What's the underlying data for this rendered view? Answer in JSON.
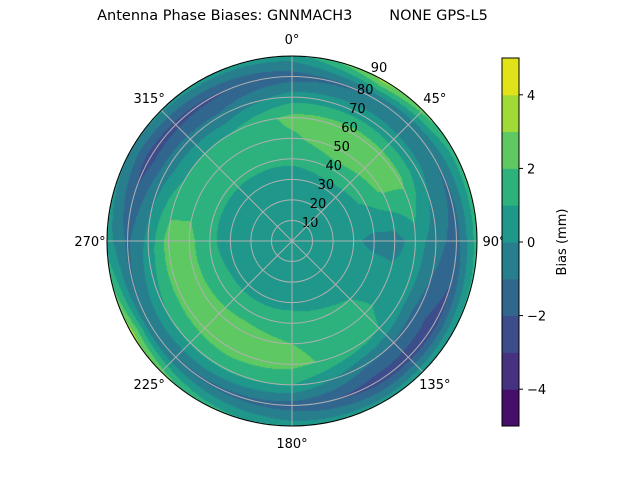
{
  "chart_data": {
    "type": "polar-contour",
    "title": "Antenna Phase Biases: GNNMACH3        NONE GPS-L5",
    "angular_direction": "clockwise",
    "angular_zero": "top",
    "angular_ticks": [
      "0°",
      "45°",
      "90°",
      "135°",
      "180°",
      "225°",
      "270°",
      "315°"
    ],
    "radial_ticks": [
      "10",
      "20",
      "30",
      "40",
      "50",
      "60",
      "70",
      "80",
      "90"
    ],
    "radial_range": [
      0,
      90
    ],
    "grid": true,
    "azimuths": [
      0,
      30,
      60,
      90,
      120,
      150,
      180,
      210,
      240,
      270,
      300,
      330
    ],
    "zeniths": [
      0,
      10,
      20,
      30,
      40,
      50,
      60,
      70,
      80,
      90
    ],
    "values": [
      [
        0.5,
        0.5,
        0.5,
        0.5,
        0.5,
        0.5,
        0.5,
        0.5,
        0.5,
        0.5,
        0.5,
        0.5
      ],
      [
        0.5,
        0.5,
        0.5,
        0.5,
        0.5,
        0.5,
        0.5,
        0.5,
        0.5,
        0.5,
        0.5,
        0.5
      ],
      [
        0.5,
        0.5,
        0.5,
        0.4,
        0.5,
        0.5,
        0.5,
        0.5,
        0.5,
        0.5,
        0.5,
        0.5
      ],
      [
        0.6,
        0.7,
        0.6,
        0.2,
        0.5,
        0.6,
        0.7,
        0.7,
        0.7,
        0.6,
        0.6,
        0.6
      ],
      [
        1.2,
        1.5,
        1.2,
        -0.3,
        0.8,
        1.2,
        1.5,
        1.5,
        1.5,
        1.2,
        1.2,
        1.2
      ],
      [
        1.8,
        2.8,
        2.2,
        -0.5,
        0.8,
        1.5,
        2.0,
        2.5,
        2.3,
        2.3,
        1.5,
        1.5
      ],
      [
        2.3,
        2.5,
        2.3,
        0.5,
        0.5,
        1.5,
        2.3,
        2.5,
        2.3,
        2.5,
        1.0,
        1.0
      ],
      [
        0.5,
        0.5,
        0.3,
        -0.5,
        -1.5,
        -0.8,
        1.0,
        1.2,
        1.0,
        0.3,
        -0.5,
        -0.8
      ],
      [
        -1.5,
        -1.0,
        -1.0,
        -1.5,
        -2.5,
        -2.5,
        -1.5,
        -1.2,
        -1.0,
        -1.2,
        -2.5,
        -2.2
      ],
      [
        0.5,
        3.5,
        1.5,
        1.5,
        1.0,
        0.5,
        0.5,
        1.5,
        3.5,
        0.5,
        0.0,
        0.5
      ]
    ],
    "levels": [
      -5,
      -4,
      -3,
      -2,
      -1,
      0,
      1,
      2,
      3,
      4,
      5
    ],
    "level_colors": [
      "#46106a",
      "#46327e",
      "#3d4c8a",
      "#31678e",
      "#277f8e",
      "#1f988b",
      "#2db27d",
      "#5ec962",
      "#a0da39",
      "#e1e318"
    ],
    "colorbar": {
      "label": "Bias (mm)",
      "ticks": [
        "−4",
        "−2",
        "0",
        "2",
        "4"
      ],
      "tick_values": [
        -4,
        -2,
        0,
        2,
        4
      ],
      "range": [
        -5,
        5
      ]
    }
  }
}
